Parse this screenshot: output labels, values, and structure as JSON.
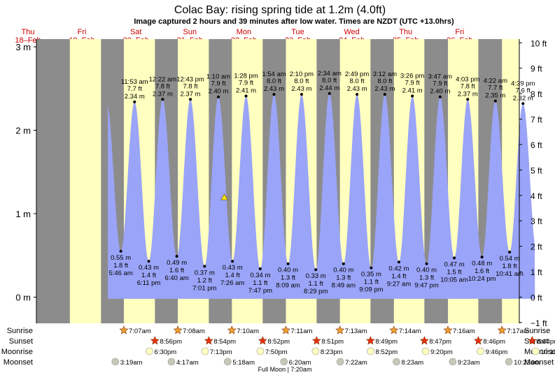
{
  "chart_data": {
    "type": "area",
    "title": "Colac Bay: rising  spring tide at 1.2m (4.0ft)",
    "subtitle": "Image captured 2 hours and 39 minutes after low water. Times are NZDT (UTC +13.0hrs)",
    "y_left": {
      "unit": "m",
      "range": [
        -0.1,
        3.1
      ],
      "ticks": [
        0,
        1,
        2,
        3
      ],
      "tick_labels": [
        "0 m",
        "1 m",
        "2 m",
        "3 m"
      ]
    },
    "y_right": {
      "unit": "ft",
      "range": [
        -1,
        10
      ],
      "ticks": [
        -1,
        0,
        1,
        2,
        3,
        4,
        5,
        6,
        7,
        8,
        9,
        10
      ],
      "tick_labels": [
        "−1 ft",
        "0 ft",
        "1 ft",
        "2 ft",
        "3 ft",
        "4 ft",
        "5 ft",
        "6 ft",
        "7 ft",
        "8 ft",
        "9 ft",
        "10 ft"
      ]
    },
    "colors": {
      "night": "#8c8c8c",
      "day": "#ffffc0",
      "tide": "#9aa4f8",
      "day_label": "#cc0000"
    },
    "days": [
      {
        "dow": "Thu",
        "date": "18–Feb"
      },
      {
        "dow": "Fri",
        "date": "19–Feb"
      },
      {
        "dow": "Sat",
        "date": "20–Feb"
      },
      {
        "dow": "Sun",
        "date": "21–Feb"
      },
      {
        "dow": "Mon",
        "date": "22–Feb"
      },
      {
        "dow": "Tue",
        "date": "23–Feb"
      },
      {
        "dow": "Wed",
        "date": "24–Feb"
      },
      {
        "dow": "Thu",
        "date": "25–Feb"
      },
      {
        "dow": "Fri",
        "date": "26–Feb"
      }
    ],
    "high_tides": [
      {
        "time": "11:53 am",
        "m": 2.34,
        "ft": "7.7 ft",
        "m_label": "2.34 m"
      },
      {
        "time": "12:22 am",
        "m": 2.37,
        "ft": "7.8 ft",
        "m_label": "2.37 m"
      },
      {
        "time": "12:43 pm",
        "m": 2.37,
        "ft": "7.8 ft",
        "m_label": "2.37 m"
      },
      {
        "time": "1:10 am",
        "m": 2.4,
        "ft": "7.9 ft",
        "m_label": "2.40 m"
      },
      {
        "time": "1:28 pm",
        "m": 2.41,
        "ft": "7.9 ft",
        "m_label": "2.41 m"
      },
      {
        "time": "1:54 am",
        "m": 2.43,
        "ft": "8.0 ft",
        "m_label": "2.43 m"
      },
      {
        "time": "2:10 pm",
        "m": 2.43,
        "ft": "8.0 ft",
        "m_label": "2.43 m"
      },
      {
        "time": "2:34 am",
        "m": 2.44,
        "ft": "8.0 ft",
        "m_label": "2.44 m"
      },
      {
        "time": "2:49 pm",
        "m": 2.43,
        "ft": "8.0 ft",
        "m_label": "2.43 m"
      },
      {
        "time": "3:12 am",
        "m": 2.43,
        "ft": "8.0 ft",
        "m_label": "2.43 m"
      },
      {
        "time": "3:26 pm",
        "m": 2.41,
        "ft": "7.9 ft",
        "m_label": "2.41 m"
      },
      {
        "time": "3:47 am",
        "m": 2.4,
        "ft": "7.9 ft",
        "m_label": "2.40 m"
      },
      {
        "time": "4:03 pm",
        "m": 2.37,
        "ft": "7.8 ft",
        "m_label": "2.37 m"
      },
      {
        "time": "4:22 am",
        "m": 2.35,
        "ft": "7.7 ft",
        "m_label": "2.35 m"
      },
      {
        "time": "4:39 pm",
        "m": 2.32,
        "ft": "7.6 ft",
        "m_label": "2.32 m"
      }
    ],
    "low_tides": [
      {
        "time": "5:46 am",
        "m": 0.55,
        "ft": "1.8 ft",
        "m_label": "0.55 m"
      },
      {
        "time": "6:11 pm",
        "m": 0.43,
        "ft": "1.4 ft",
        "m_label": "0.43 m"
      },
      {
        "time": "6:40 am",
        "m": 0.49,
        "ft": "1.6 ft",
        "m_label": "0.49 m"
      },
      {
        "time": "7:01 pm",
        "m": 0.37,
        "ft": "1.2 ft",
        "m_label": "0.37 m"
      },
      {
        "time": "7:26 am",
        "m": 0.43,
        "ft": "1.4 ft",
        "m_label": "0.43 m"
      },
      {
        "time": "7:47 pm",
        "m": 0.34,
        "ft": "1.1 ft",
        "m_label": "0.34 m"
      },
      {
        "time": "8:09 am",
        "m": 0.4,
        "ft": "1.3 ft",
        "m_label": "0.40 m"
      },
      {
        "time": "8:29 pm",
        "m": 0.33,
        "ft": "1.1 ft",
        "m_label": "0.33 m"
      },
      {
        "time": "8:49 am",
        "m": 0.4,
        "ft": "1.3 ft",
        "m_label": "0.40 m"
      },
      {
        "time": "9:09 pm",
        "m": 0.35,
        "ft": "1.1 ft",
        "m_label": "0.35 m"
      },
      {
        "time": "9:27 am",
        "m": 0.42,
        "ft": "1.4 ft",
        "m_label": "0.42 m"
      },
      {
        "time": "9:47 pm",
        "m": 0.4,
        "ft": "1.3 ft",
        "m_label": "0.40 m"
      },
      {
        "time": "10:05 am",
        "m": 0.47,
        "ft": "1.5 ft",
        "m_label": "0.47 m"
      },
      {
        "time": "10:24 pm",
        "m": 0.48,
        "ft": "1.6 ft",
        "m_label": "0.48 m"
      },
      {
        "time": "10:41 am",
        "m": 0.54,
        "ft": "1.8 ft",
        "m_label": "0.54 m"
      }
    ],
    "current": {
      "m": 1.2,
      "ft": 4.0
    },
    "row_labels": {
      "sunrise": "Sunrise",
      "sunset": "Sunset",
      "moonrise": "Moonrise",
      "moonset": "Moonset"
    },
    "sunrise": [
      "7:07am",
      "7:08am",
      "7:10am",
      "7:11am",
      "7:13am",
      "7:14am",
      "7:16am",
      "7:17am"
    ],
    "sunset": [
      "8:56pm",
      "8:54pm",
      "8:52pm",
      "8:51pm",
      "8:49pm",
      "8:47pm",
      "8:46pm",
      "8:44pm"
    ],
    "moonrise": [
      "6:30pm",
      "7:13pm",
      "7:50pm",
      "8:23pm",
      "8:52pm",
      "9:20pm",
      "9:46pm",
      "10:13pm"
    ],
    "moonset": [
      "3:19am",
      "4:17am",
      "5:18am",
      "6:20am",
      "7:22am",
      "8:23am",
      "9:23am",
      "10:23am"
    ],
    "moon_phase": "Full Moon | 7:20am"
  }
}
